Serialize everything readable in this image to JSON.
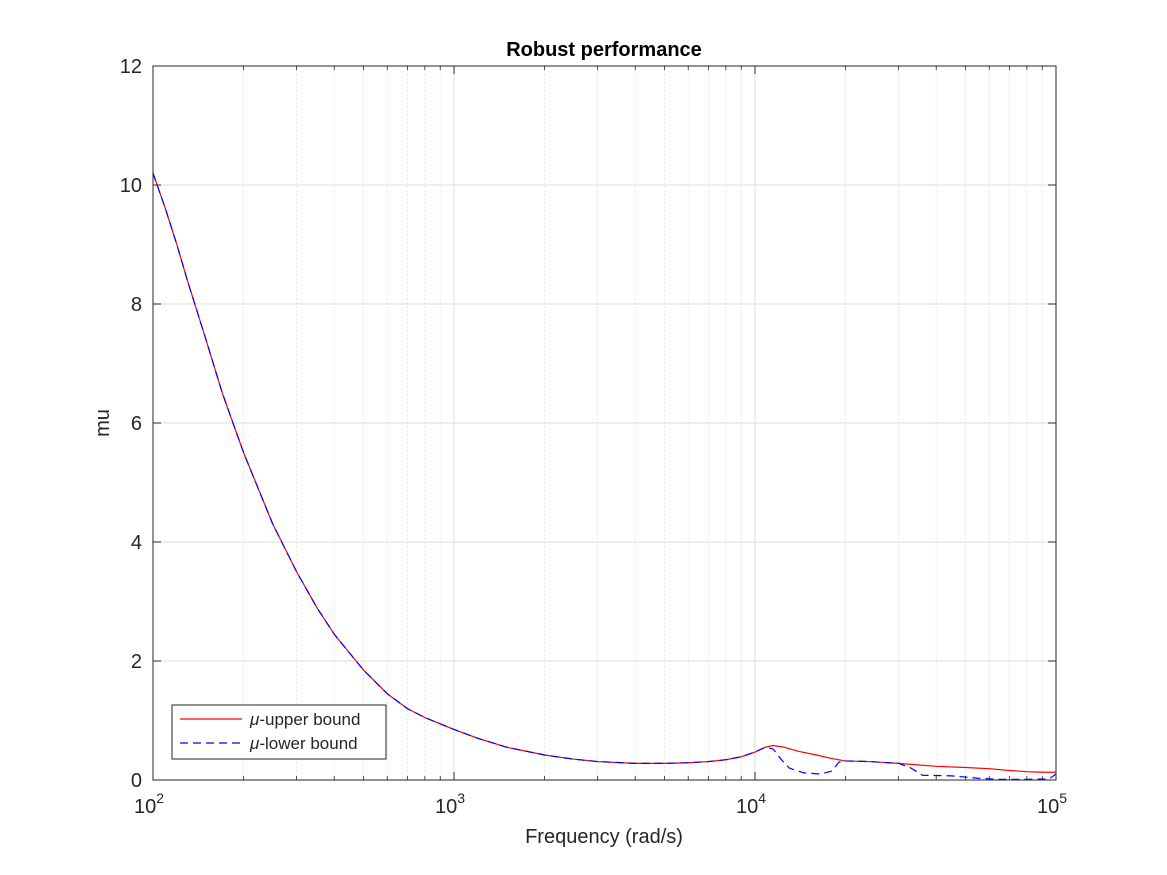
{
  "chart_data": {
    "type": "line",
    "title": "Robust performance",
    "xlabel": "Frequency (rad/s)",
    "ylabel": "mu",
    "xscale": "log",
    "xlim": [
      100,
      100000
    ],
    "ylim": [
      0,
      12
    ],
    "x_ticks": [
      {
        "value": 100,
        "base": "10",
        "exp": "2"
      },
      {
        "value": 1000,
        "base": "10",
        "exp": "3"
      },
      {
        "value": 10000,
        "base": "10",
        "exp": "4"
      },
      {
        "value": 100000,
        "base": "10",
        "exp": "5"
      }
    ],
    "y_ticks": [
      "0",
      "2",
      "4",
      "6",
      "8",
      "10",
      "12"
    ],
    "grid": "on (major and minor)",
    "legend_location": "bottom-left",
    "series": [
      {
        "name": "μ-upper bound",
        "legend_symbol": "μ",
        "legend_text": "-upper bound",
        "color": "#ff0000",
        "style": "solid",
        "points": [
          [
            100,
            10.2
          ],
          [
            110,
            9.6
          ],
          [
            120,
            9.0
          ],
          [
            130,
            8.4
          ],
          [
            150,
            7.4
          ],
          [
            170,
            6.5
          ],
          [
            200,
            5.5
          ],
          [
            250,
            4.3
          ],
          [
            300,
            3.5
          ],
          [
            350,
            2.9
          ],
          [
            400,
            2.45
          ],
          [
            500,
            1.85
          ],
          [
            600,
            1.45
          ],
          [
            700,
            1.2
          ],
          [
            800,
            1.05
          ],
          [
            1000,
            0.85
          ],
          [
            1200,
            0.7
          ],
          [
            1500,
            0.55
          ],
          [
            2000,
            0.42
          ],
          [
            2500,
            0.35
          ],
          [
            3000,
            0.31
          ],
          [
            4000,
            0.28
          ],
          [
            5000,
            0.28
          ],
          [
            6000,
            0.29
          ],
          [
            7000,
            0.31
          ],
          [
            8000,
            0.34
          ],
          [
            9000,
            0.39
          ],
          [
            10000,
            0.47
          ],
          [
            10800,
            0.55
          ],
          [
            11500,
            0.58
          ],
          [
            12500,
            0.55
          ],
          [
            14000,
            0.48
          ],
          [
            16000,
            0.42
          ],
          [
            18000,
            0.36
          ],
          [
            20000,
            0.32
          ],
          [
            24000,
            0.31
          ],
          [
            30000,
            0.28
          ],
          [
            40000,
            0.23
          ],
          [
            50000,
            0.21
          ],
          [
            60000,
            0.19
          ],
          [
            70000,
            0.16
          ],
          [
            80000,
            0.14
          ],
          [
            90000,
            0.13
          ],
          [
            100000,
            0.13
          ]
        ]
      },
      {
        "name": "μ-lower bound",
        "legend_symbol": "μ",
        "legend_text": "-lower bound",
        "color": "#0000ff",
        "style": "dashed",
        "points": [
          [
            100,
            10.2
          ],
          [
            110,
            9.6
          ],
          [
            120,
            9.0
          ],
          [
            130,
            8.4
          ],
          [
            150,
            7.4
          ],
          [
            170,
            6.5
          ],
          [
            200,
            5.5
          ],
          [
            250,
            4.3
          ],
          [
            300,
            3.5
          ],
          [
            350,
            2.9
          ],
          [
            400,
            2.45
          ],
          [
            500,
            1.85
          ],
          [
            600,
            1.45
          ],
          [
            700,
            1.2
          ],
          [
            800,
            1.05
          ],
          [
            1000,
            0.85
          ],
          [
            1200,
            0.7
          ],
          [
            1500,
            0.55
          ],
          [
            2000,
            0.42
          ],
          [
            2500,
            0.35
          ],
          [
            3000,
            0.31
          ],
          [
            4000,
            0.28
          ],
          [
            5000,
            0.28
          ],
          [
            6000,
            0.29
          ],
          [
            7000,
            0.31
          ],
          [
            8000,
            0.34
          ],
          [
            9000,
            0.39
          ],
          [
            10000,
            0.47
          ],
          [
            10800,
            0.55
          ],
          [
            11500,
            0.52
          ],
          [
            12200,
            0.35
          ],
          [
            13000,
            0.2
          ],
          [
            14500,
            0.12
          ],
          [
            16500,
            0.1
          ],
          [
            18000,
            0.15
          ],
          [
            19000,
            0.3
          ],
          [
            20000,
            0.32
          ],
          [
            24000,
            0.31
          ],
          [
            30000,
            0.28
          ],
          [
            33000,
            0.2
          ],
          [
            36000,
            0.08
          ],
          [
            45000,
            0.07
          ],
          [
            55000,
            0.03
          ],
          [
            65000,
            0.01
          ],
          [
            80000,
            0.01
          ],
          [
            95000,
            0.02
          ],
          [
            100000,
            0.1
          ]
        ]
      }
    ]
  }
}
